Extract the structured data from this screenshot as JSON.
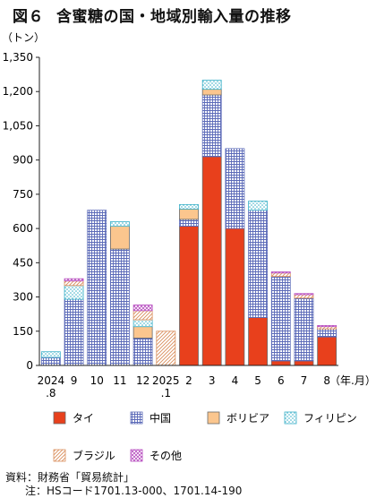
{
  "figure": {
    "number": "図６",
    "title": "含蜜糖の国・地域別輸入量の推移"
  },
  "chart_data": {
    "type": "bar",
    "stacked": true,
    "y_unit": "（トン）",
    "x_unit": "（年.月）",
    "ylim": [
      0,
      1350
    ],
    "yticks": [
      0,
      150,
      300,
      450,
      600,
      750,
      900,
      1050,
      1200,
      1350
    ],
    "ytick_labels": [
      "0",
      "150",
      "300",
      "450",
      "600",
      "750",
      "900",
      "1,050",
      "1,200",
      "1,350"
    ],
    "categories": [
      [
        "2024",
        ".8"
      ],
      [
        "9"
      ],
      [
        "10"
      ],
      [
        "11"
      ],
      [
        "12"
      ],
      [
        "2025",
        ".1"
      ],
      [
        "2"
      ],
      [
        "3"
      ],
      [
        "4"
      ],
      [
        "5"
      ],
      [
        "6"
      ],
      [
        "7"
      ],
      [
        "8"
      ]
    ],
    "series": [
      {
        "name": "タイ",
        "pattern": "solid",
        "color": "#e8401c",
        "values": [
          0,
          0,
          0,
          0,
          0,
          0,
          610,
          915,
          600,
          210,
          20,
          20,
          125
        ]
      },
      {
        "name": "中国",
        "pattern": "grid",
        "color": "#5b6ab8",
        "values": [
          35,
          290,
          680,
          510,
          120,
          0,
          30,
          270,
          350,
          470,
          370,
          275,
          35
        ]
      },
      {
        "name": "ボリビア",
        "pattern": "solid",
        "color": "#fbc68e",
        "values": [
          0,
          0,
          0,
          100,
          50,
          0,
          45,
          25,
          0,
          0,
          0,
          0,
          0
        ]
      },
      {
        "name": "フィリピン",
        "pattern": "dots",
        "color": "#3ab0c8",
        "values": [
          25,
          60,
          0,
          20,
          30,
          0,
          20,
          40,
          0,
          40,
          0,
          0,
          0
        ]
      },
      {
        "name": "ブラジル",
        "pattern": "hatch",
        "color": "#d98e5c",
        "values": [
          0,
          20,
          0,
          0,
          40,
          150,
          0,
          0,
          0,
          0,
          15,
          15,
          10
        ]
      },
      {
        "name": "その他",
        "pattern": "cross",
        "color": "#b84fc0",
        "values": [
          0,
          10,
          0,
          0,
          25,
          0,
          0,
          0,
          0,
          0,
          5,
          5,
          5
        ]
      }
    ],
    "legend_position": "bottom",
    "grid": false
  },
  "notes": {
    "source": "資料：財務省「貿易統計」",
    "note": "注：HSコード1701.13-000、1701.14-190"
  }
}
